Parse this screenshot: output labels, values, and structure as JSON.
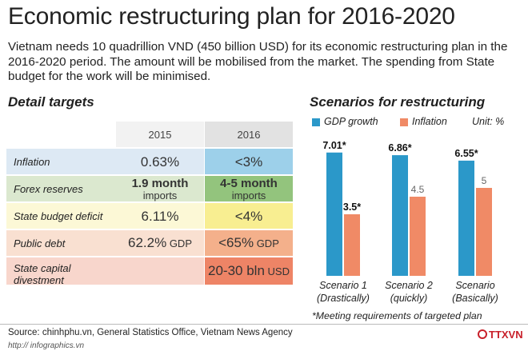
{
  "header": {
    "title": "Economic restructuring plan for 2016-2020",
    "intro": "Vietnam needs 10 quadrillion VND (450 billion USD) for its economic restructuring plan in the 2016-2020 period. The amount will be mobilised from the market. The spending from State budget for the work will be minimised."
  },
  "table": {
    "heading": "Detail targets",
    "columns": [
      "2015",
      "2016"
    ],
    "rows": [
      {
        "label": "Inflation",
        "v2015": "0.63%",
        "v2015_sub": "",
        "v2016": "<3%",
        "v2016_sub": "",
        "colors": [
          "#dde9f4",
          "#dde9f4",
          "#9dd0ea"
        ]
      },
      {
        "label": "Forex reserves",
        "v2015": "1.9 month",
        "v2015_sub": "imports",
        "v2016": "4-5 month",
        "v2016_sub": "imports",
        "colors": [
          "#dbe8cf",
          "#dbe8cf",
          "#93c47d"
        ]
      },
      {
        "label": "State budget deficit",
        "v2015": "6.11%",
        "v2015_sub": "",
        "v2016": "<4%",
        "v2016_sub": "",
        "colors": [
          "#fcf8d6",
          "#fcf8d6",
          "#f8ee91"
        ]
      },
      {
        "label": "Public debt",
        "v2015": "62.2%",
        "v2015_unit": " GDP",
        "v2016": "<65%",
        "v2016_unit": " GDP",
        "colors": [
          "#f9e0d1",
          "#f9e0d1",
          "#f4b08b"
        ]
      },
      {
        "label": "State capital divestment",
        "v2015": "",
        "v2016": "20-30 bln",
        "v2016_unit": " USD",
        "colors": [
          "#f8d6cc",
          "#f8d6cc",
          "#ee8466"
        ]
      }
    ]
  },
  "chart_data": {
    "type": "bar",
    "title": "Scenarios for restructuring",
    "unit_label": "Unit: %",
    "categories": [
      "Scenario 1",
      "Scenario 2",
      "Scenario"
    ],
    "category_sublabels": [
      "(Drastically)",
      "(quickly)",
      "(Basically)"
    ],
    "series": [
      {
        "name": "GDP growth",
        "color": "#2b98c9",
        "values": [
          7.01,
          6.86,
          6.55
        ],
        "labels": [
          "7.01*",
          "6.86*",
          "6.55*"
        ]
      },
      {
        "name": "Inflation",
        "color": "#f08a66",
        "values": [
          3.5,
          4.5,
          5
        ],
        "labels": [
          "3.5*",
          "4.5",
          "5"
        ]
      }
    ],
    "ylim": [
      0,
      7.5
    ],
    "note": "*Meeting requirements of targeted plan"
  },
  "footer": {
    "source": "Source: chinhphu.vn, General Statistics Office, Vietnam News Agency",
    "site": "http:// infographics.vn",
    "logo_text": "TTXVN",
    "logo_color": "#c8202a"
  }
}
